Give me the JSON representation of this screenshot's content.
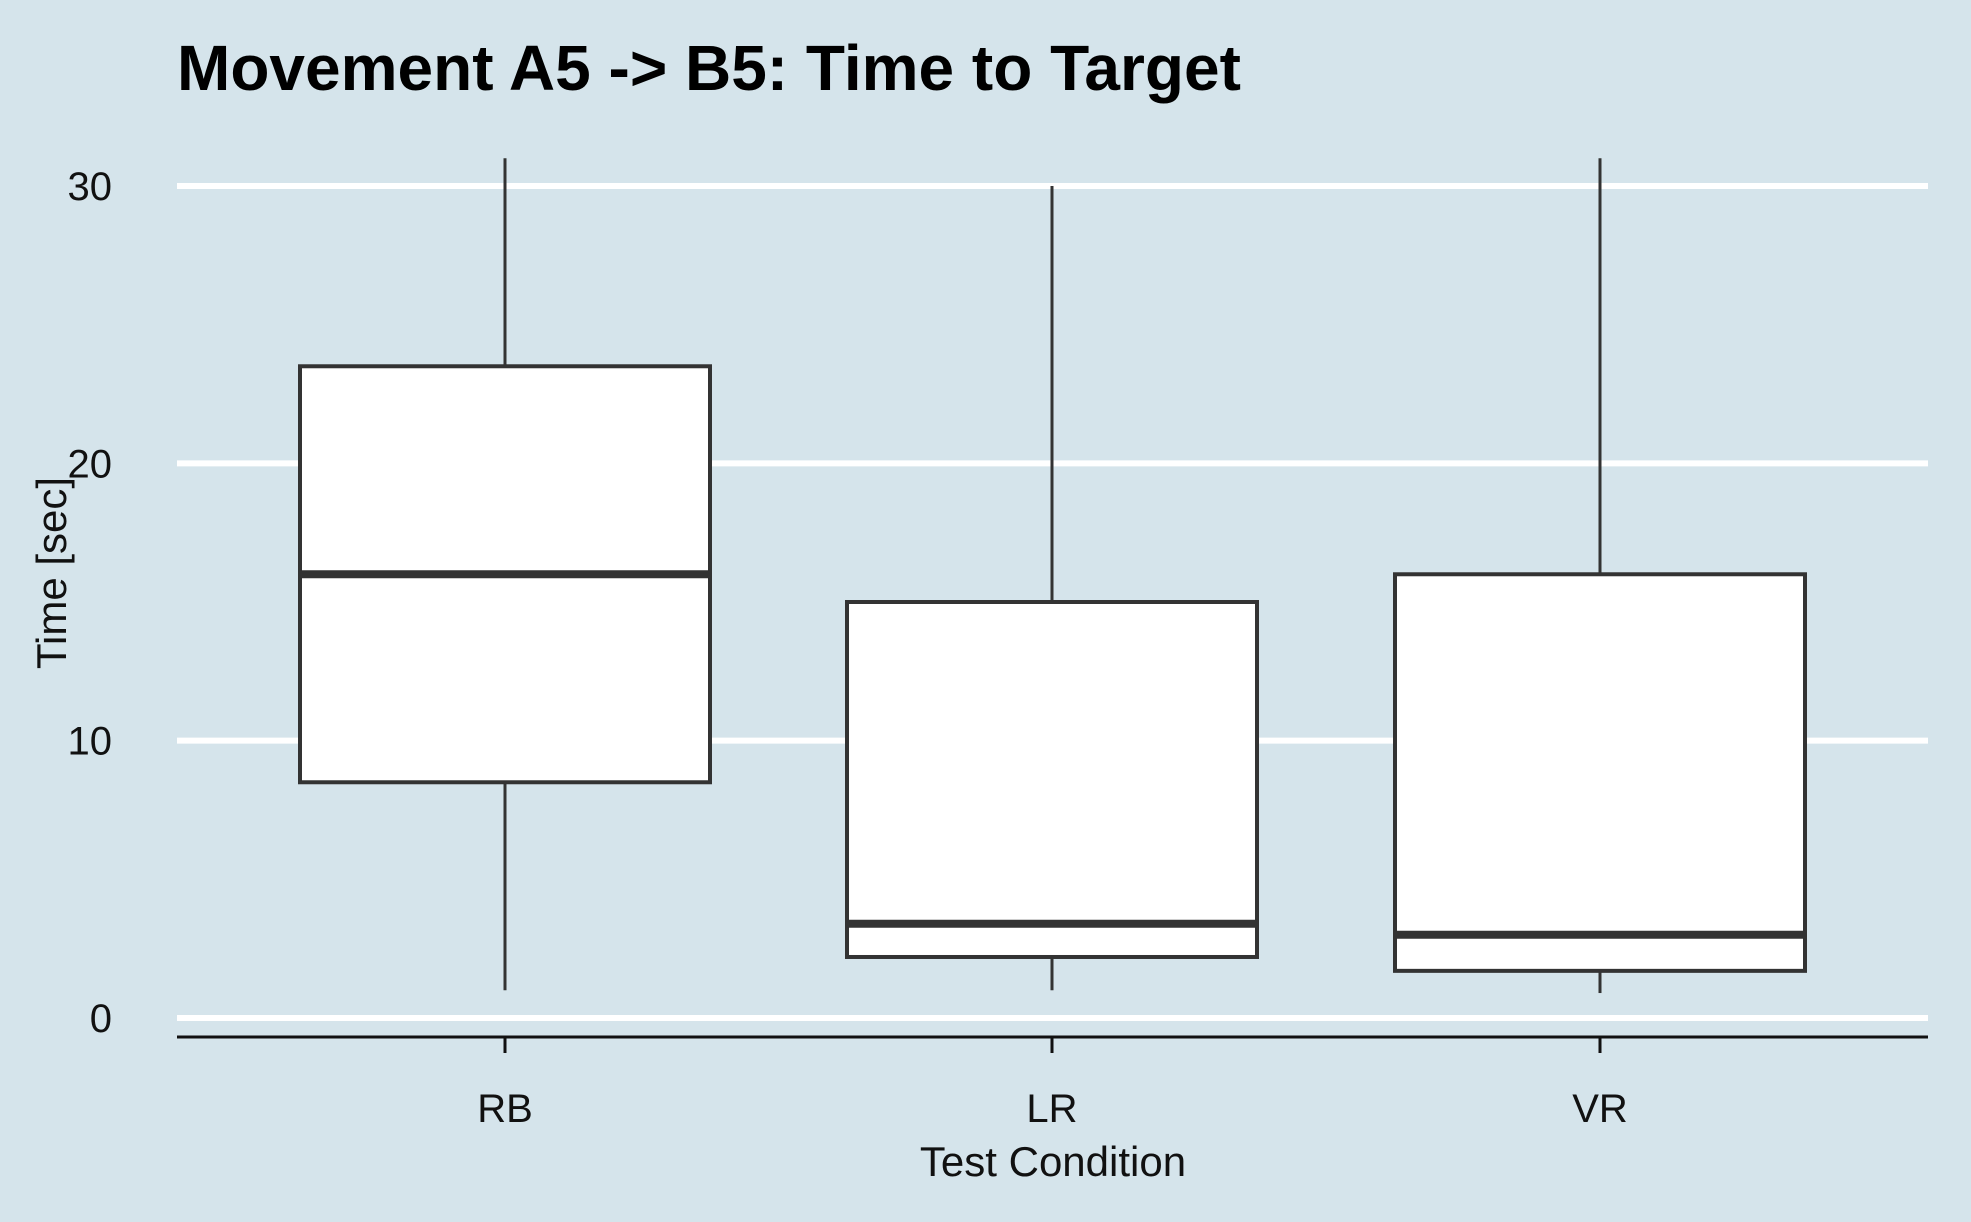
{
  "chart_data": {
    "type": "box",
    "title": "Movement A5 -> B5: Time to Target",
    "xlabel": "Test Condition",
    "ylabel": "Time [sec]",
    "ylim": [
      0,
      31
    ],
    "yticks": [
      0,
      10,
      20,
      30
    ],
    "grid": "horizontal",
    "categories": [
      "RB",
      "LR",
      "VR"
    ],
    "boxes": [
      {
        "category": "RB",
        "whisker_low": 1.0,
        "q1": 8.5,
        "median": 16.0,
        "q3": 23.5,
        "whisker_high": 31.0
      },
      {
        "category": "LR",
        "whisker_low": 1.0,
        "q1": 2.2,
        "median": 3.4,
        "q3": 15.0,
        "whisker_high": 30.0
      },
      {
        "category": "VR",
        "whisker_low": 0.9,
        "q1": 1.7,
        "median": 3.0,
        "q3": 16.0,
        "whisker_high": 31.0
      }
    ],
    "colors": {
      "background": "#d5e4eb",
      "grid": "#ffffff",
      "box_fill": "#ffffff",
      "box_line": "#333333",
      "axis": "#111111"
    }
  }
}
